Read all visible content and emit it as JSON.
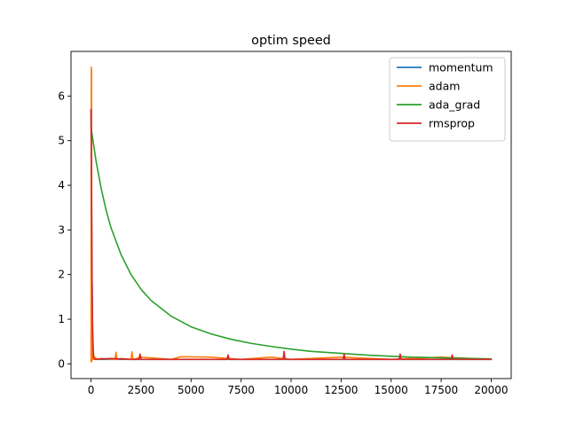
{
  "chart_data": {
    "type": "line",
    "title": "optim speed",
    "xlabel": "",
    "ylabel": "",
    "xlim": [
      -1000,
      21000
    ],
    "ylim": [
      -0.33,
      7.0
    ],
    "x_ticks": [
      0,
      2500,
      5000,
      7500,
      10000,
      12500,
      15000,
      17500,
      20000
    ],
    "y_ticks": [
      0,
      1,
      2,
      3,
      4,
      5,
      6
    ],
    "grid": false,
    "legend_position": "top-right",
    "series": [
      {
        "name": "momentum",
        "color": "#1f77b4",
        "x": [
          0,
          20,
          50,
          80,
          110,
          150,
          250,
          500,
          1000,
          2000,
          5000,
          10000,
          15000,
          20000
        ],
        "y": [
          5.7,
          4.5,
          2.0,
          0.8,
          0.3,
          0.12,
          0.1,
          0.1,
          0.1,
          0.1,
          0.1,
          0.1,
          0.1,
          0.1
        ]
      },
      {
        "name": "adam",
        "color": "#ff7f0e",
        "x": [
          0,
          15,
          20,
          30,
          40,
          60,
          90,
          120,
          160,
          200,
          300,
          500,
          1200,
          1250,
          1300,
          1500,
          2000,
          2050,
          2100,
          2500,
          4000,
          4500,
          6000,
          7500,
          9000,
          10000,
          12500,
          15000,
          17500,
          20000
        ],
        "y": [
          0.05,
          6.65,
          0.1,
          6.6,
          0.05,
          0.3,
          0.1,
          0.25,
          0.1,
          0.15,
          0.1,
          0.12,
          0.1,
          0.26,
          0.1,
          0.12,
          0.1,
          0.27,
          0.1,
          0.15,
          0.1,
          0.16,
          0.15,
          0.1,
          0.15,
          0.1,
          0.15,
          0.1,
          0.15,
          0.1
        ]
      },
      {
        "name": "ada_grad",
        "color": "#2ca02c",
        "x": [
          0,
          100,
          250,
          500,
          750,
          1000,
          1500,
          2000,
          2500,
          3000,
          4000,
          5000,
          6000,
          7000,
          8000,
          9000,
          10000,
          11000,
          12000,
          13000,
          14000,
          15000,
          16000,
          17000,
          18000,
          19000,
          20000
        ],
        "y": [
          5.3,
          5.0,
          4.55,
          3.95,
          3.45,
          3.05,
          2.45,
          2.0,
          1.67,
          1.42,
          1.07,
          0.83,
          0.67,
          0.55,
          0.46,
          0.39,
          0.33,
          0.28,
          0.25,
          0.22,
          0.19,
          0.17,
          0.15,
          0.14,
          0.13,
          0.12,
          0.11
        ]
      },
      {
        "name": "rmsprop",
        "color": "#d62728",
        "x": [
          0,
          20,
          50,
          80,
          120,
          200,
          1000,
          2000,
          2400,
          2450,
          2500,
          4000,
          6800,
          6850,
          6900,
          8000,
          9600,
          9650,
          9700,
          12600,
          12650,
          12700,
          15400,
          15450,
          15500,
          18000,
          18050,
          18100,
          20000
        ],
        "y": [
          5.7,
          4.2,
          2.0,
          0.7,
          0.15,
          0.1,
          0.12,
          0.1,
          0.1,
          0.22,
          0.1,
          0.1,
          0.1,
          0.2,
          0.1,
          0.1,
          0.1,
          0.28,
          0.1,
          0.1,
          0.22,
          0.1,
          0.1,
          0.22,
          0.1,
          0.1,
          0.2,
          0.1,
          0.1
        ]
      }
    ]
  }
}
